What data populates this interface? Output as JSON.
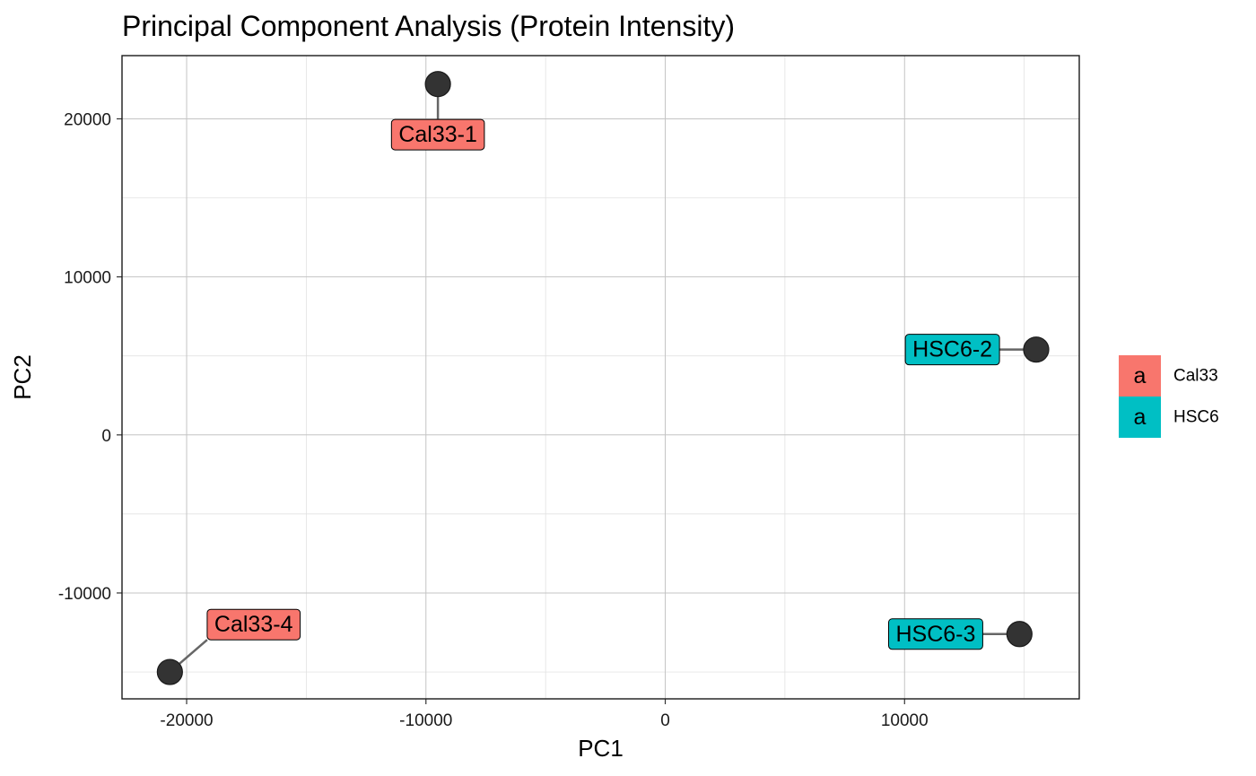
{
  "chart_data": {
    "type": "scatter",
    "title": "Principal Component Analysis (Protein Intensity)",
    "xlabel": "PC1",
    "ylabel": "PC2",
    "xlim": [
      -22700,
      17300
    ],
    "ylim": [
      -16700,
      24000
    ],
    "x_ticks": [
      -20000,
      -10000,
      0,
      10000
    ],
    "x_tick_labels": [
      "-20000",
      "-10000",
      "0",
      "10000"
    ],
    "x_minor_ticks": [
      -15000,
      -5000,
      5000,
      15000
    ],
    "y_ticks": [
      -10000,
      0,
      10000,
      20000
    ],
    "y_tick_labels": [
      "-10000",
      "0",
      "10000",
      "20000"
    ],
    "y_minor_ticks": [
      -15000,
      -5000,
      5000,
      15000
    ],
    "grid": true,
    "point_color": "#333333",
    "groups": [
      {
        "name": "Cal33",
        "color": "#F8766D"
      },
      {
        "name": "HSC6",
        "color": "#00BFC4"
      }
    ],
    "points": [
      {
        "label": "Cal33-1",
        "group": "Cal33",
        "x": -9500,
        "y": 22200,
        "label_x": -9500,
        "label_y": 19000
      },
      {
        "label": "Cal33-4",
        "group": "Cal33",
        "x": -20700,
        "y": -15000,
        "label_x": -17200,
        "label_y": -12000
      },
      {
        "label": "HSC6-2",
        "group": "HSC6",
        "x": 15500,
        "y": 5400,
        "label_x": 12000,
        "label_y": 5400
      },
      {
        "label": "HSC6-3",
        "group": "HSC6",
        "x": 14800,
        "y": -12600,
        "label_x": 11300,
        "label_y": -12600
      }
    ],
    "legend": {
      "position": "right",
      "key_glyph": "a",
      "entries": [
        "Cal33",
        "HSC6"
      ]
    }
  }
}
